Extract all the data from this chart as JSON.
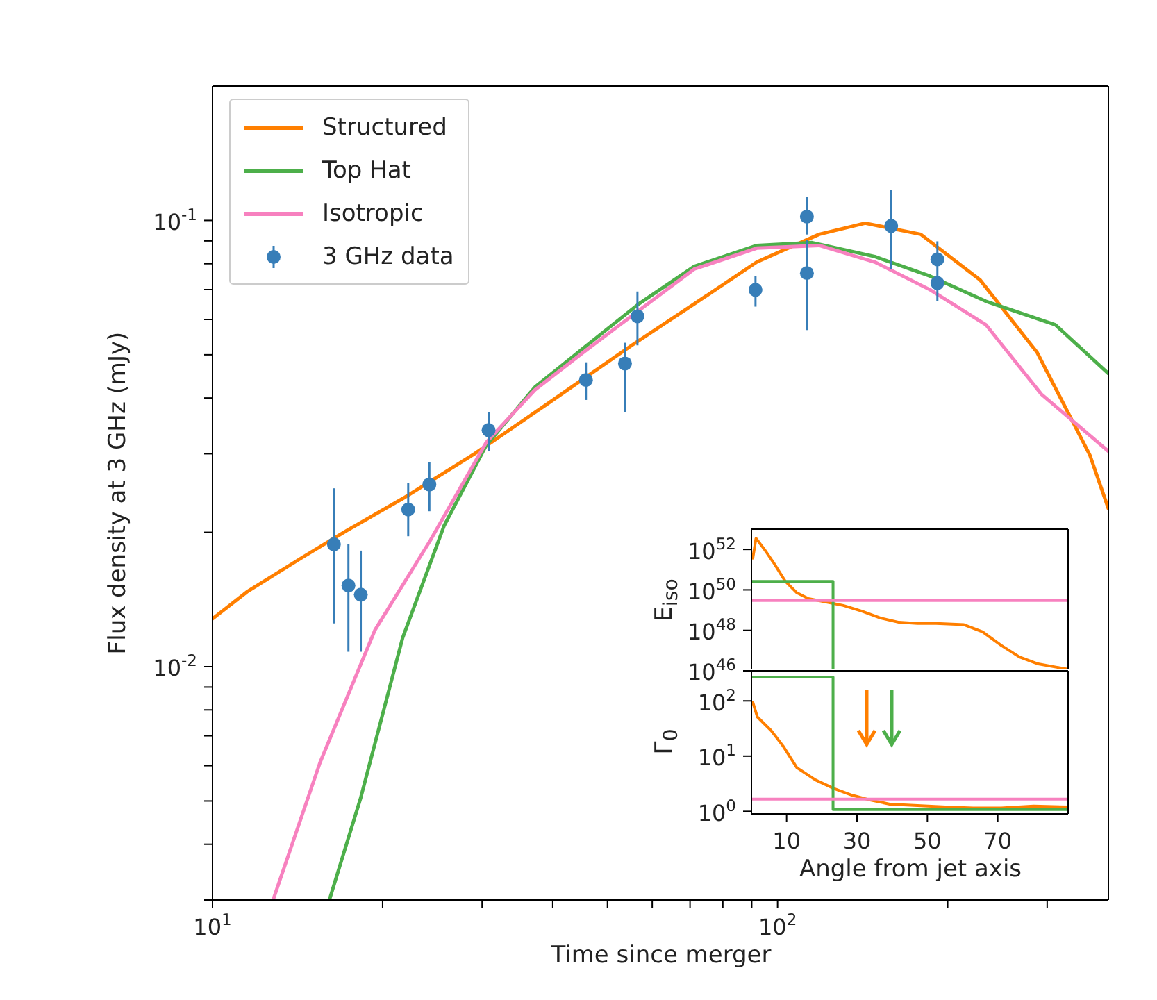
{
  "chart_data": [
    {
      "type": "line",
      "xlabel": "Time since merger",
      "ylabel": "Flux density at 3 GHz (mJy)",
      "log": "xy",
      "xlim": [
        10,
        385
      ],
      "ylim": [
        0.003,
        0.2
      ],
      "xticks": [
        {
          "value": 10,
          "label": "10$^{1}$"
        },
        {
          "value": 20,
          "label": null
        },
        {
          "value": 30,
          "label": null
        },
        {
          "value": 40,
          "label": null
        },
        {
          "value": 50,
          "label": null
        },
        {
          "value": 60,
          "label": null
        },
        {
          "value": 70,
          "label": null
        },
        {
          "value": 80,
          "label": null
        },
        {
          "value": 90,
          "label": null
        },
        {
          "value": 100,
          "label": "10$^{2}$"
        },
        {
          "value": 200,
          "label": null
        },
        {
          "value": 300,
          "label": null
        }
      ],
      "yticks": [
        {
          "value": 0.003,
          "label": null
        },
        {
          "value": 0.004,
          "label": null
        },
        {
          "value": 0.005,
          "label": null
        },
        {
          "value": 0.006,
          "label": null
        },
        {
          "value": 0.007,
          "label": null
        },
        {
          "value": 0.008,
          "label": null
        },
        {
          "value": 0.009,
          "label": null
        },
        {
          "value": 0.01,
          "label": "10$^{-2}$"
        },
        {
          "value": 0.02,
          "label": null
        },
        {
          "value": 0.03,
          "label": null
        },
        {
          "value": 0.04,
          "label": null
        },
        {
          "value": 0.05,
          "label": null
        },
        {
          "value": 0.06,
          "label": null
        },
        {
          "value": 0.07,
          "label": null
        },
        {
          "value": 0.08,
          "label": null
        },
        {
          "value": 0.09,
          "label": null
        },
        {
          "value": 0.1,
          "label": "10$^{-1}$"
        }
      ],
      "legend": "top left",
      "series": [
        {
          "name": "Structured",
          "color": "#ff7f00",
          "x": [
            10,
            11.5,
            14.45,
            17.3,
            21.7,
            29.1,
            38.9,
            55.2,
            71.2,
            91.9,
            118.5,
            142.9,
            179.2,
            228.4,
            288,
            357,
            385
          ],
          "values": [
            0.0128,
            0.0147,
            0.0176,
            0.0202,
            0.0238,
            0.03,
            0.0386,
            0.0525,
            0.065,
            0.0807,
            0.0931,
            0.0986,
            0.0931,
            0.0735,
            0.0506,
            0.0298,
            0.0226
          ]
        },
        {
          "name": "Top Hat",
          "color": "#4daf4a",
          "x": [
            16.1,
            18.3,
            21.7,
            25.7,
            30.5,
            37.2,
            45.3,
            56.8,
            71.2,
            91.9,
            115.1,
            148.6,
            186.3,
            233.7,
            310,
            385
          ],
          "values": [
            0.003,
            0.00509,
            0.0116,
            0.0207,
            0.0313,
            0.0423,
            0.0517,
            0.065,
            0.0789,
            0.0879,
            0.0892,
            0.083,
            0.075,
            0.0659,
            0.0584,
            0.0454
          ]
        },
        {
          "name": "Isotropic",
          "color": "#f781bf",
          "x": [
            12.8,
            15.5,
            19.4,
            24.3,
            30.5,
            37.2,
            45.3,
            56.8,
            71.2,
            91.9,
            118.5,
            148.6,
            186.3,
            233.7,
            293,
            385
          ],
          "values": [
            0.003,
            0.0061,
            0.0121,
            0.0192,
            0.0318,
            0.0417,
            0.0506,
            0.0628,
            0.0778,
            0.0867,
            0.0879,
            0.0807,
            0.0699,
            0.0584,
            0.0408,
            0.0304
          ]
        },
        {
          "name": "3 GHz data",
          "type": "scatter",
          "marker": "circle",
          "color": "#377eb8",
          "x": [
            16.4,
            17.4,
            18.3,
            22.2,
            24.2,
            30.8,
            45.8,
            53.7,
            56.5,
            91.4,
            112.7,
            112.7,
            158.9,
            191.8,
            191.8
          ],
          "values": [
            0.0188,
            0.0152,
            0.0145,
            0.0225,
            0.0256,
            0.0339,
            0.0439,
            0.0478,
            0.061,
            0.0699,
            0.102,
            0.0762,
            0.0972,
            0.0818,
            0.0724
          ],
          "errors": [
            [
              0.0125,
              0.0251
            ],
            [
              0.0108,
              0.0188
            ],
            [
              0.0108,
              0.0182
            ],
            [
              0.0196,
              0.0258
            ],
            [
              0.0223,
              0.0287
            ],
            [
              0.0304,
              0.0372
            ],
            [
              0.0396,
              0.0481
            ],
            [
              0.0372,
              0.0532
            ],
            [
              0.0525,
              0.0693
            ],
            [
              0.0641,
              0.075
            ],
            [
              0.093,
              0.113
            ],
            [
              0.0568,
              0.0905
            ],
            [
              0.0778,
              0.117
            ],
            [
              0.08,
              0.0898
            ],
            [
              0.0659,
              0.08
            ]
          ]
        }
      ]
    },
    {
      "type": "line",
      "ylabel": "E$_{iso}$",
      "log": "y",
      "xlim": [
        0,
        90
      ],
      "ylim": [
        1e+46,
        1e+53
      ],
      "xticks": [
        10,
        30,
        50,
        70
      ],
      "yticks": [
        {
          "value": 1e+46,
          "label": "10$^{46}$"
        },
        {
          "value": 1e+48,
          "label": "10$^{48}$"
        },
        {
          "value": 1e+50,
          "label": "10$^{50}$"
        },
        {
          "value": 1e+52,
          "label": "10$^{52}$"
        }
      ],
      "tick_labels": "y",
      "series": [
        {
          "color": "#ff7f00",
          "x": [
            0.4,
            1.3,
            3.7,
            6.3,
            9.6,
            12.9,
            16.2,
            20.8,
            26.1,
            31.4,
            36.6,
            41.9,
            47.2,
            52.5,
            60.4,
            65.7,
            71.0,
            76.2,
            81.5,
            86.8,
            90
          ],
          "values": [
            3.7e+51,
            3.5e+52,
            1e+52,
            2.2e+51,
            2.7e+50,
            7.2e+49,
            3.7e+49,
            2.6e+49,
            1.7e+49,
            8.9e+48,
            4.1e+48,
            2.5e+48,
            2.2e+48,
            2.2e+48,
            1.9e+48,
            8.5e+47,
            1.8e+47,
            4.8e+46,
            2.2e+46,
            1.5e+46,
            1.2e+46
          ]
        },
        {
          "color": "#4daf4a",
          "x": [
            0,
            23.2,
            23.2
          ],
          "values": [
            2.6e+50,
            2.6e+50,
            1e+46
          ]
        },
        {
          "color": "#f781bf",
          "x": [
            0,
            90
          ],
          "values": [
            3e+49,
            3e+49
          ]
        }
      ]
    },
    {
      "type": "line",
      "xlabel": "Angle from jet axis",
      "ylabel": "Γ$_{0}$",
      "log": "y",
      "xlim": [
        0,
        90
      ],
      "ylim": [
        0.9,
        350
      ],
      "xticks": [
        10,
        30,
        50,
        70
      ],
      "yticks": [
        {
          "value": 1,
          "label": "10$^{0}$"
        },
        {
          "value": 10,
          "label": "10$^{1}$"
        },
        {
          "value": 100,
          "label": "10$^{2}$"
        }
      ],
      "series": [
        {
          "color": "#ff7f00",
          "x": [
            0.4,
            1.7,
            5.6,
            9.0,
            12.9,
            18.2,
            23.5,
            28.7,
            34.0,
            39.3,
            47.2,
            55.1,
            63.0,
            71.0,
            80.2,
            90
          ],
          "values": [
            94,
            51,
            29,
            15.2,
            6.2,
            3.7,
            2.58,
            1.95,
            1.59,
            1.35,
            1.27,
            1.2,
            1.15,
            1.15,
            1.25,
            1.2
          ]
        },
        {
          "color": "#4daf4a",
          "x": [
            0,
            23.2,
            23.2,
            90
          ],
          "values": [
            270,
            270,
            1.08,
            1.08
          ]
        },
        {
          "color": "#f781bf",
          "x": [
            0,
            90
          ],
          "values": [
            1.66,
            1.66
          ]
        }
      ]
    }
  ]
}
